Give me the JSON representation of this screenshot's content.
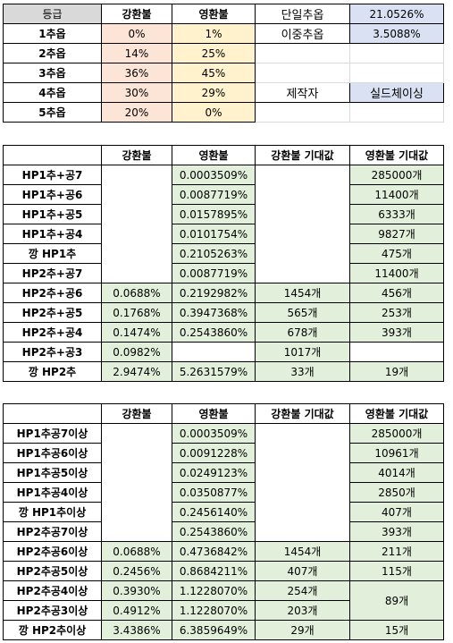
{
  "top": {
    "headers": [
      "등급",
      "강환불",
      "영환불"
    ],
    "rows": [
      {
        "grade": "1추옵",
        "gang": "0%",
        "yeong": "1%"
      },
      {
        "grade": "2추옵",
        "gang": "14%",
        "yeong": "25%"
      },
      {
        "grade": "3추옵",
        "gang": "36%",
        "yeong": "45%"
      },
      {
        "grade": "4추옵",
        "gang": "30%",
        "yeong": "29%"
      },
      {
        "grade": "5추옵",
        "gang": "20%",
        "yeong": "0%"
      }
    ],
    "single_label": "단일추옵",
    "single_value": "21.0526%",
    "double_label": "이중추옵",
    "double_value": "3.5088%",
    "maker_label": "제작자",
    "maker_value": "실드체이싱"
  },
  "table1": {
    "headers": [
      "강환불",
      "영환불",
      "강환불 기대값",
      "영환불 기대값"
    ],
    "rows": [
      {
        "label": "HP1추+공7",
        "gang": "",
        "yeong": "0.0003509%",
        "gang_exp": "",
        "yeong_exp": "285000개"
      },
      {
        "label": "HP1추+공6",
        "gang": "",
        "yeong": "0.0087719%",
        "gang_exp": "",
        "yeong_exp": "11400개"
      },
      {
        "label": "HP1추+공5",
        "gang": "",
        "yeong": "0.0157895%",
        "gang_exp": "",
        "yeong_exp": "6333개"
      },
      {
        "label": "HP1추+공4",
        "gang": "",
        "yeong": "0.0101754%",
        "gang_exp": "",
        "yeong_exp": "9827개"
      },
      {
        "label": "깡 HP1추",
        "gang": "",
        "yeong": "0.2105263%",
        "gang_exp": "",
        "yeong_exp": "475개"
      },
      {
        "label": "HP2추+공7",
        "gang": "",
        "yeong": "0.0087719%",
        "gang_exp": "",
        "yeong_exp": "11400개"
      },
      {
        "label": "HP2추+공6",
        "gang": "0.0688%",
        "yeong": "0.2192982%",
        "gang_exp": "1454개",
        "yeong_exp": "456개"
      },
      {
        "label": "HP2추+공5",
        "gang": "0.1768%",
        "yeong": "0.3947368%",
        "gang_exp": "565개",
        "yeong_exp": "253개"
      },
      {
        "label": "HP2추+공4",
        "gang": "0.1474%",
        "yeong": "0.2543860%",
        "gang_exp": "678개",
        "yeong_exp": "393개"
      },
      {
        "label": "HP2추+공3",
        "gang": "0.0982%",
        "yeong": "",
        "gang_exp": "1017개",
        "yeong_exp": ""
      },
      {
        "label": "깡 HP2추",
        "gang": "2.9474%",
        "yeong": "5.2631579%",
        "gang_exp": "33개",
        "yeong_exp": "19개"
      }
    ]
  },
  "table2": {
    "headers": [
      "강환불",
      "영환불",
      "강환불 기대값",
      "영환불 기대값"
    ],
    "rows": [
      {
        "label": "HP1추공7이상",
        "gang": "",
        "yeong": "0.0003509%",
        "gang_exp": "",
        "yeong_exp": "285000개"
      },
      {
        "label": "HP1추공6이상",
        "gang": "",
        "yeong": "0.0091228%",
        "gang_exp": "",
        "yeong_exp": "10961개"
      },
      {
        "label": "HP1추공5이상",
        "gang": "",
        "yeong": "0.0249123%",
        "gang_exp": "",
        "yeong_exp": "4014개"
      },
      {
        "label": "HP1추공4이상",
        "gang": "",
        "yeong": "0.0350877%",
        "gang_exp": "",
        "yeong_exp": "2850개"
      },
      {
        "label": "깡 HP1추이상",
        "gang": "",
        "yeong": "0.2456140%",
        "gang_exp": "",
        "yeong_exp": "407개"
      },
      {
        "label": "HP2추공7이상",
        "gang": "",
        "yeong": "0.2543860%",
        "gang_exp": "",
        "yeong_exp": "393개"
      },
      {
        "label": "HP2추공6이상",
        "gang": "0.0688%",
        "yeong": "0.4736842%",
        "gang_exp": "1454개",
        "yeong_exp": "211개"
      },
      {
        "label": "HP2추공5이상",
        "gang": "0.2456%",
        "yeong": "0.8684211%",
        "gang_exp": "407개",
        "yeong_exp": "115개"
      },
      {
        "label": "HP2추공4이상",
        "gang": "0.3930%",
        "yeong": "1.1228070%",
        "gang_exp": "254개",
        "yeong_exp": "89개"
      },
      {
        "label": "HP2추공3이상",
        "gang": "0.4912%",
        "yeong": "1.1228070%",
        "gang_exp": "203개",
        "yeong_exp": ""
      },
      {
        "label": "깡 HP2추이상",
        "gang": "3.4386%",
        "yeong": "6.3859649%",
        "gang_exp": "29개",
        "yeong_exp": "15개"
      }
    ]
  }
}
